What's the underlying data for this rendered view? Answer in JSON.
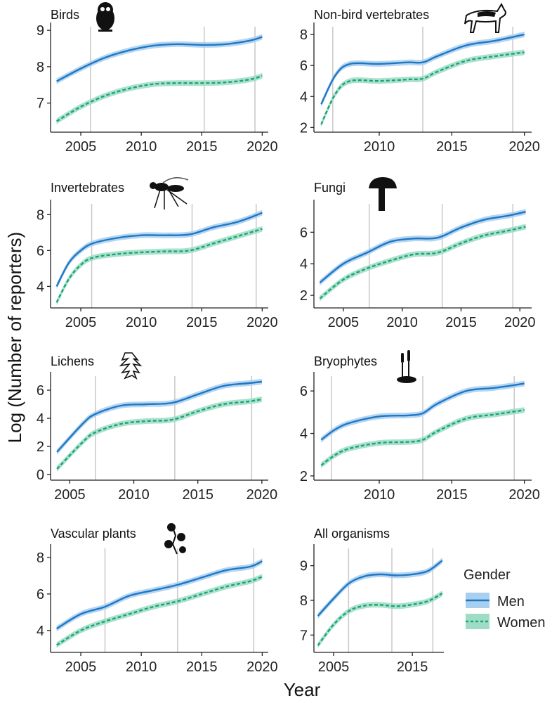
{
  "figure": {
    "ylabel": "Log (Number of reporters)",
    "xlabel": "Year",
    "legend_title": "Gender",
    "legend_items": [
      {
        "label": "Men",
        "color": "#1f77c4",
        "fill": "#a8cff0",
        "dash": false
      },
      {
        "label": "Women",
        "color": "#17a773",
        "fill": "#9fdcc6",
        "dash": true
      }
    ],
    "legend_position": "right of last panel"
  },
  "chart_data": [
    {
      "type": "line",
      "title": "Birds",
      "icon": "owl-icon",
      "xlim": [
        2002.5,
        2020.5
      ],
      "ylim": [
        6.2,
        9.1
      ],
      "xticks": [
        2005,
        2010,
        2015,
        2020
      ],
      "yticks": [
        7,
        8,
        9
      ],
      "vlines": [
        2005.8,
        2015.2,
        2019.4
      ],
      "x": [
        2003,
        2005,
        2007,
        2009,
        2011,
        2013,
        2015,
        2017,
        2019,
        2020
      ],
      "series": [
        {
          "name": "Men",
          "values": [
            7.6,
            7.95,
            8.25,
            8.45,
            8.58,
            8.62,
            8.6,
            8.62,
            8.72,
            8.82
          ]
        },
        {
          "name": "Women",
          "values": [
            6.5,
            6.9,
            7.2,
            7.4,
            7.52,
            7.55,
            7.55,
            7.57,
            7.65,
            7.75
          ]
        }
      ]
    },
    {
      "type": "line",
      "title": "Non-bird vertebrates",
      "icon": "wolf-icon",
      "xlim": [
        2005.5,
        2020.5
      ],
      "ylim": [
        1.7,
        8.5
      ],
      "xticks": [
        2010,
        2015,
        2020
      ],
      "yticks": [
        2,
        4,
        6,
        8
      ],
      "vlines": [
        2006.8,
        2013.0,
        2019.2
      ],
      "x": [
        2006,
        2007,
        2008,
        2010,
        2012,
        2013,
        2014,
        2016,
        2018,
        2020
      ],
      "series": [
        {
          "name": "Men",
          "values": [
            3.5,
            5.4,
            6.1,
            6.1,
            6.2,
            6.2,
            6.6,
            7.3,
            7.6,
            8.0
          ]
        },
        {
          "name": "Women",
          "values": [
            2.2,
            4.2,
            5.0,
            5.0,
            5.1,
            5.15,
            5.6,
            6.3,
            6.6,
            6.85
          ]
        }
      ]
    },
    {
      "type": "line",
      "title": "Invertebrates",
      "icon": "wasp-icon",
      "xlim": [
        2002.5,
        2020.5
      ],
      "ylim": [
        2.8,
        8.6
      ],
      "xticks": [
        2005,
        2010,
        2015,
        2020
      ],
      "yticks": [
        4,
        6,
        8
      ],
      "vlines": [
        2005.9,
        2014.2,
        2019.5
      ],
      "x": [
        2003,
        2004,
        2005,
        2006,
        2008,
        2010,
        2012,
        2014,
        2016,
        2018,
        2020
      ],
      "series": [
        {
          "name": "Men",
          "values": [
            4.0,
            5.3,
            6.0,
            6.4,
            6.7,
            6.85,
            6.85,
            6.9,
            7.3,
            7.6,
            8.1
          ]
        },
        {
          "name": "Women",
          "values": [
            3.1,
            4.4,
            5.2,
            5.6,
            5.8,
            5.9,
            5.95,
            6.0,
            6.4,
            6.8,
            7.2
          ]
        }
      ]
    },
    {
      "type": "line",
      "title": "Fungi",
      "icon": "mushroom-icon",
      "xlim": [
        2002.5,
        2021.0
      ],
      "ylim": [
        1.2,
        7.8
      ],
      "xticks": [
        2005,
        2010,
        2015,
        2020
      ],
      "yticks": [
        2,
        4,
        6
      ],
      "vlines": [
        2007.2,
        2013.4,
        2019.4
      ],
      "x": [
        2003,
        2005,
        2007,
        2009,
        2011,
        2013,
        2015,
        2017,
        2019,
        2020.5
      ],
      "series": [
        {
          "name": "Men",
          "values": [
            2.8,
            4.0,
            4.7,
            5.4,
            5.6,
            5.65,
            6.3,
            6.8,
            7.05,
            7.3
          ]
        },
        {
          "name": "Women",
          "values": [
            1.8,
            3.0,
            3.7,
            4.2,
            4.6,
            4.7,
            5.3,
            5.8,
            6.1,
            6.35
          ]
        }
      ]
    },
    {
      "type": "line",
      "title": "Lichens",
      "icon": "lichen-icon",
      "xlim": [
        2003.5,
        2020.5
      ],
      "ylim": [
        -0.4,
        7.0
      ],
      "xticks": [
        2005,
        2010,
        2015,
        2020
      ],
      "yticks": [
        0,
        2,
        4,
        6
      ],
      "vlines": [
        2007.0,
        2013.2,
        2019.2
      ],
      "x": [
        2004,
        2006,
        2007,
        2009,
        2011,
        2013,
        2015,
        2017,
        2019,
        2020
      ],
      "series": [
        {
          "name": "Men",
          "values": [
            1.6,
            3.6,
            4.3,
            4.9,
            5.0,
            5.1,
            5.7,
            6.3,
            6.5,
            6.6
          ]
        },
        {
          "name": "Women",
          "values": [
            0.4,
            2.3,
            3.0,
            3.6,
            3.8,
            3.9,
            4.5,
            5.0,
            5.2,
            5.35
          ]
        }
      ]
    },
    {
      "type": "line",
      "title": "Bryophytes",
      "icon": "moss-icon",
      "xlim": [
        2005.5,
        2020.5
      ],
      "ylim": [
        1.8,
        6.7
      ],
      "xticks": [
        2010,
        2015,
        2020
      ],
      "yticks": [
        2,
        4,
        6
      ],
      "vlines": [
        2006.7,
        2013.0,
        2019.3
      ],
      "x": [
        2006,
        2007,
        2008,
        2010,
        2012,
        2013,
        2014,
        2016,
        2018,
        2020
      ],
      "series": [
        {
          "name": "Men",
          "values": [
            3.7,
            4.2,
            4.5,
            4.8,
            4.85,
            4.95,
            5.4,
            6.0,
            6.15,
            6.35
          ]
        },
        {
          "name": "Women",
          "values": [
            2.5,
            3.0,
            3.3,
            3.55,
            3.6,
            3.7,
            4.1,
            4.7,
            4.9,
            5.1
          ]
        }
      ]
    },
    {
      "type": "line",
      "title": "Vascular plants",
      "icon": "plant-icon",
      "xlim": [
        2002.5,
        2020.5
      ],
      "ylim": [
        2.8,
        8.5
      ],
      "xticks": [
        2005,
        2010,
        2015,
        2020
      ],
      "yticks": [
        4,
        6,
        8
      ],
      "vlines": [
        2007.0,
        2013.0,
        2019.3
      ],
      "x": [
        2003,
        2005,
        2007,
        2009,
        2011,
        2013,
        2015,
        2017,
        2019,
        2020
      ],
      "series": [
        {
          "name": "Men",
          "values": [
            4.1,
            4.9,
            5.3,
            5.9,
            6.2,
            6.5,
            6.9,
            7.3,
            7.5,
            7.8
          ]
        },
        {
          "name": "Women",
          "values": [
            3.2,
            4.0,
            4.5,
            4.9,
            5.3,
            5.6,
            6.0,
            6.4,
            6.7,
            6.95
          ]
        }
      ]
    },
    {
      "type": "line",
      "title": "All organisms",
      "icon": "",
      "xlim": [
        2002.5,
        2019.0
      ],
      "ylim": [
        6.5,
        9.5
      ],
      "xticks": [
        2005,
        2015
      ],
      "yticks": [
        7,
        8,
        9
      ],
      "vlines": [
        2006.9,
        2012.4,
        2017.6
      ],
      "x": [
        2003,
        2005,
        2007,
        2009,
        2011,
        2013,
        2015,
        2017,
        2018.8
      ],
      "series": [
        {
          "name": "Men",
          "values": [
            7.55,
            8.05,
            8.5,
            8.7,
            8.75,
            8.72,
            8.75,
            8.85,
            9.15
          ]
        },
        {
          "name": "Women",
          "values": [
            6.7,
            7.3,
            7.7,
            7.85,
            7.87,
            7.83,
            7.88,
            7.98,
            8.2
          ]
        }
      ]
    }
  ]
}
